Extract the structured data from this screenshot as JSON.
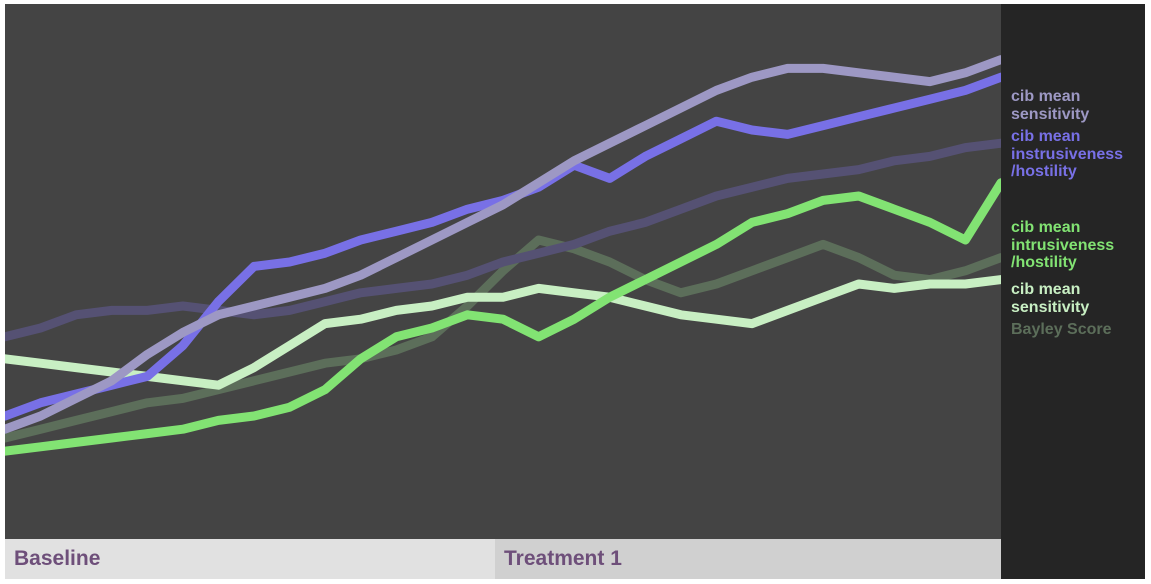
{
  "chart_data": {
    "type": "line",
    "title": "",
    "xlabel": "",
    "ylabel": "",
    "grid": false,
    "legend_placement": "right",
    "x": [
      0,
      1,
      2,
      3,
      4,
      5,
      6,
      7,
      8,
      9,
      10,
      11,
      12,
      13,
      14,
      15,
      16,
      17,
      18,
      19,
      20,
      21,
      22,
      23,
      24,
      25,
      26,
      27,
      28
    ],
    "ylim": [
      0,
      100
    ],
    "phases": [
      {
        "label": "Baseline",
        "start": 0,
        "end": 14
      },
      {
        "label": "Treatment 1",
        "start": 14,
        "end": 28
      }
    ],
    "series": [
      {
        "name": "Bayley Score",
        "color": "#5c6e5a",
        "values": [
          15,
          17,
          19,
          21,
          23,
          24,
          26,
          28,
          30,
          32,
          33,
          35,
          38,
          45,
          53,
          60,
          58,
          55,
          51,
          48,
          50,
          53,
          56,
          59,
          56,
          52,
          51,
          53,
          56
        ]
      },
      {
        "name": "cib mean sensitivity",
        "color": "#c8efc3",
        "values": [
          33,
          32,
          31,
          30,
          29,
          28,
          27,
          31,
          36,
          41,
          42,
          44,
          45,
          47,
          47,
          49,
          48,
          47,
          45,
          43,
          42,
          41,
          44,
          47,
          50,
          49,
          50,
          50,
          51
        ]
      },
      {
        "name": "cib mean intrusiveness\n/hostility",
        "color": "#82e373",
        "values": [
          12,
          13,
          14,
          15,
          16,
          17,
          19,
          20,
          22,
          26,
          33,
          38,
          40,
          43,
          42,
          38,
          42,
          47,
          51,
          55,
          59,
          64,
          66,
          69,
          70,
          67,
          64,
          60,
          73
        ]
      },
      {
        "name": "",
        "color": "#555173",
        "values": [
          38,
          40,
          43,
          44,
          44,
          45,
          44,
          43,
          44,
          46,
          48,
          49,
          50,
          52,
          55,
          57,
          59,
          62,
          64,
          67,
          70,
          72,
          74,
          75,
          76,
          78,
          79,
          81,
          82
        ]
      },
      {
        "name": "cib mean\ninstrusiveness\n/hostility",
        "color": "#7870e6",
        "values": [
          20,
          23,
          25,
          27,
          29,
          36,
          46,
          54,
          55,
          57,
          60,
          62,
          64,
          67,
          69,
          72,
          77,
          74,
          79,
          83,
          87,
          85,
          84,
          86,
          88,
          90,
          92,
          94,
          97
        ]
      },
      {
        "name": "cib mean\nsensitivity",
        "color": "#9d98c4",
        "values": [
          17,
          20,
          24,
          28,
          34,
          39,
          43,
          45,
          47,
          49,
          52,
          56,
          60,
          64,
          68,
          73,
          78,
          82,
          86,
          90,
          94,
          97,
          99,
          99,
          98,
          97,
          96,
          98,
          101
        ]
      }
    ]
  }
}
